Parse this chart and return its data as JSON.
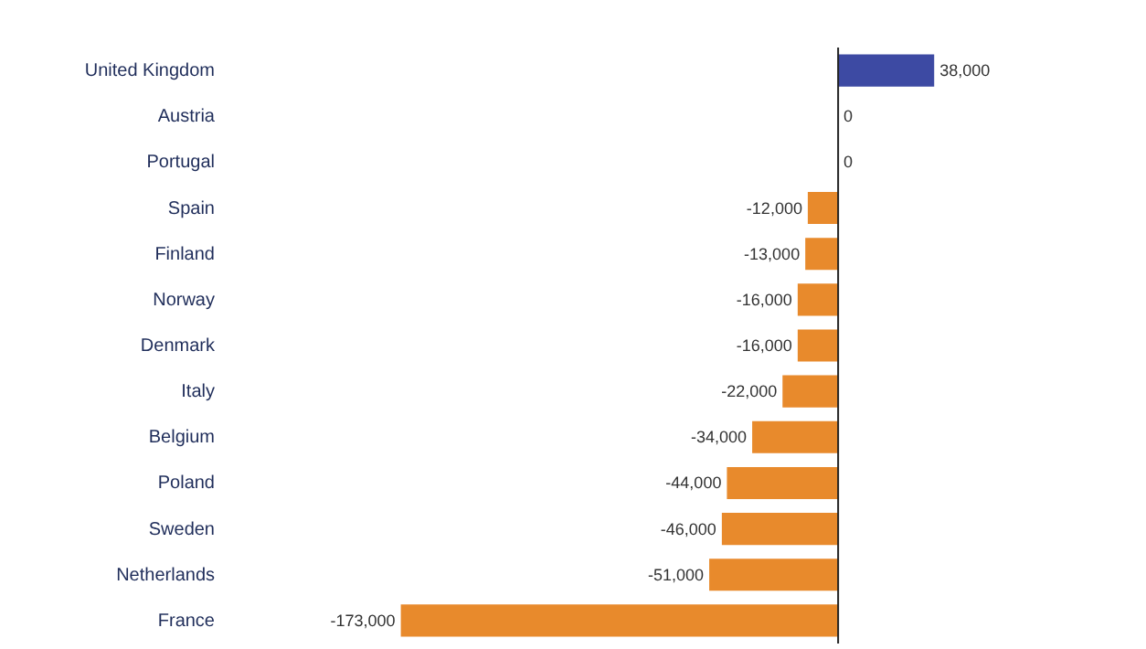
{
  "chart_data": {
    "type": "bar",
    "orientation": "horizontal",
    "categories": [
      "United Kingdom",
      "Austria",
      "Portugal",
      "Spain",
      "Finland",
      "Norway",
      "Denmark",
      "Italy",
      "Belgium",
      "Poland",
      "Sweden",
      "Netherlands",
      "France"
    ],
    "values": [
      38000,
      0,
      0,
      -12000,
      -13000,
      -16000,
      -16000,
      -22000,
      -34000,
      -44000,
      -46000,
      -51000,
      -173000
    ],
    "colors": [
      "#3d4aa3",
      "#e88a2c",
      "#e88a2c",
      "#e88a2c",
      "#e88a2c",
      "#e88a2c",
      "#e88a2c",
      "#e88a2c",
      "#e88a2c",
      "#e88a2c",
      "#e88a2c",
      "#e88a2c",
      "#e88a2c"
    ],
    "value_labels": [
      "38,000",
      "0",
      "0",
      "-12,000",
      "-13,000",
      "-16,000",
      "-16,000",
      "-22,000",
      "-34,000",
      "-44,000",
      "-46,000",
      "-51,000",
      "-173,000"
    ]
  }
}
